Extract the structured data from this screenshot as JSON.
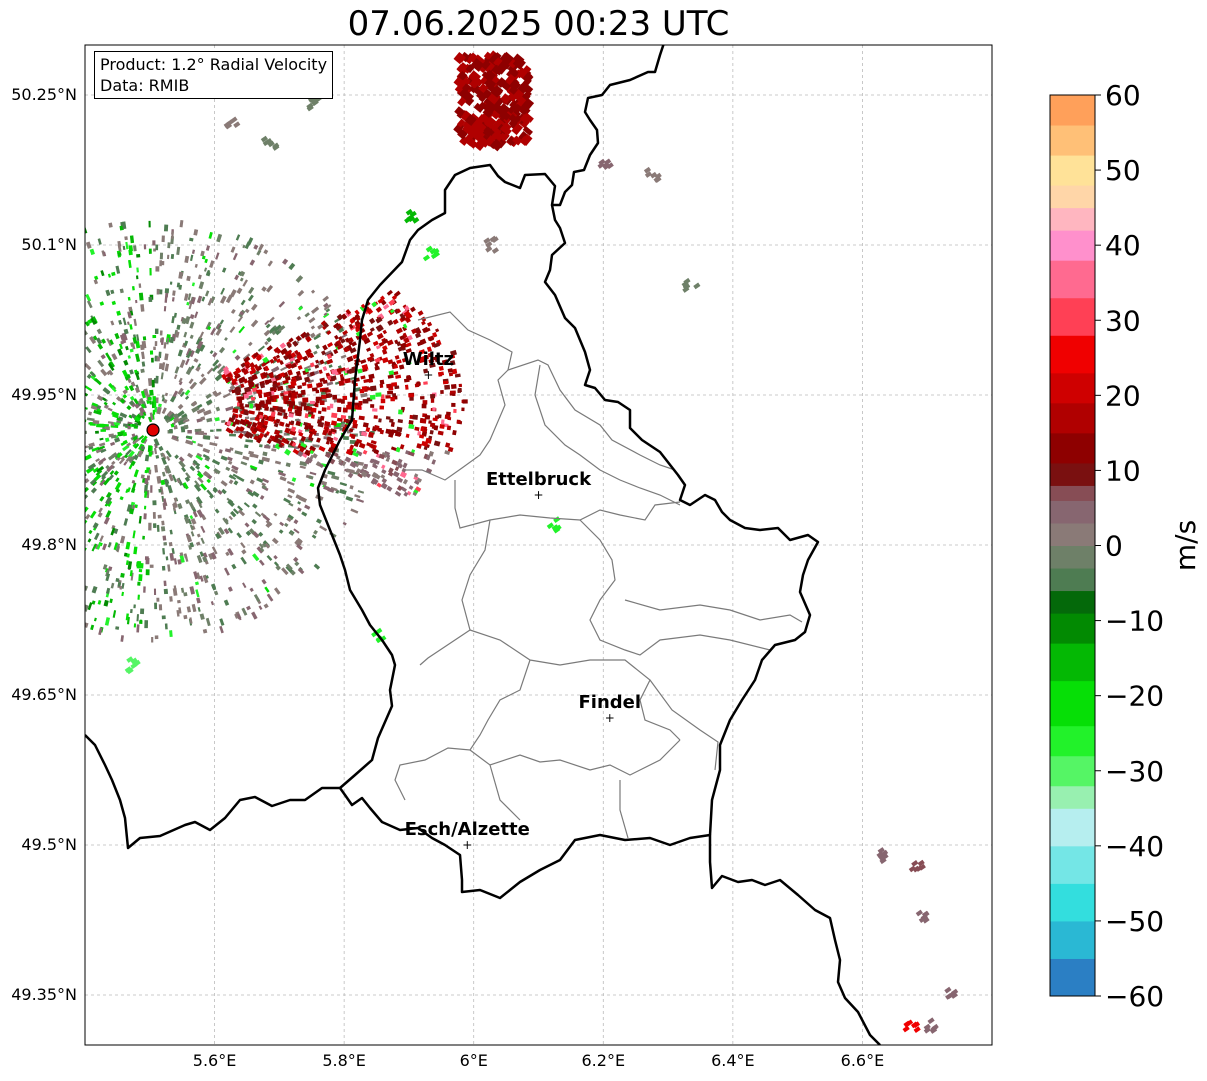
{
  "title": "07.06.2025 00:23 UTC",
  "info": {
    "product": "Product: 1.2° Radial Velocity",
    "data": "Data: RMIB"
  },
  "map": {
    "lon_range": [
      5.4,
      6.8
    ],
    "lat_range": [
      49.3,
      50.3
    ],
    "grid": true,
    "lat_ticks": [
      {
        "value": 50.25,
        "label": "50.25°N"
      },
      {
        "value": 50.1,
        "label": "50.1°N"
      },
      {
        "value": 49.95,
        "label": "49.95°N"
      },
      {
        "value": 49.8,
        "label": "49.8°N"
      },
      {
        "value": 49.65,
        "label": "49.65°N"
      },
      {
        "value": 49.5,
        "label": "49.5°N"
      },
      {
        "value": 49.35,
        "label": "49.35°N"
      }
    ],
    "lon_ticks": [
      {
        "value": 5.6,
        "label": "5.6°E"
      },
      {
        "value": 5.8,
        "label": "5.8°E"
      },
      {
        "value": 6.0,
        "label": "6°E"
      },
      {
        "value": 6.2,
        "label": "6.2°E"
      },
      {
        "value": 6.4,
        "label": "6.4°E"
      },
      {
        "value": 6.6,
        "label": "6.6°E"
      }
    ],
    "places": [
      {
        "name": "Wiltz",
        "lon": 5.93,
        "lat": 49.97
      },
      {
        "name": "Ettelbruck",
        "lon": 6.1,
        "lat": 49.85
      },
      {
        "name": "Findel",
        "lon": 6.21,
        "lat": 49.627
      },
      {
        "name": "Esch/Alzette",
        "lon": 5.99,
        "lat": 49.5
      }
    ],
    "radar_site": {
      "lon": 5.505,
      "lat": 49.915
    }
  },
  "colorbar": {
    "label": "m/s",
    "min": -60,
    "max": 60,
    "ticks": [
      {
        "value": 60,
        "label": "60"
      },
      {
        "value": 50,
        "label": "50"
      },
      {
        "value": 40,
        "label": "40"
      },
      {
        "value": 30,
        "label": "30"
      },
      {
        "value": 20,
        "label": "20"
      },
      {
        "value": 10,
        "label": "10"
      },
      {
        "value": 0,
        "label": "0"
      },
      {
        "value": -10,
        "label": "−10"
      },
      {
        "value": -20,
        "label": "−20"
      },
      {
        "value": -30,
        "label": "−30"
      },
      {
        "value": -40,
        "label": "−40"
      },
      {
        "value": -50,
        "label": "−50"
      },
      {
        "value": -60,
        "label": "−60"
      }
    ],
    "stops": [
      {
        "from": -60,
        "to": -55,
        "color": "#2b7fc4"
      },
      {
        "from": -55,
        "to": -50,
        "color": "#2ab8d4"
      },
      {
        "from": -50,
        "to": -45,
        "color": "#33dede"
      },
      {
        "from": -45,
        "to": -40,
        "color": "#74e6e6"
      },
      {
        "from": -40,
        "to": -35,
        "color": "#b6eeef"
      },
      {
        "from": -35,
        "to": -32,
        "color": "#98f0b0"
      },
      {
        "from": -32,
        "to": -28,
        "color": "#55f565"
      },
      {
        "from": -28,
        "to": -24,
        "color": "#22f22a"
      },
      {
        "from": -24,
        "to": -18,
        "color": "#06df06"
      },
      {
        "from": -18,
        "to": -13,
        "color": "#04b804"
      },
      {
        "from": -13,
        "to": -9,
        "color": "#028a02"
      },
      {
        "from": -9,
        "to": -6,
        "color": "#04690a"
      },
      {
        "from": -6,
        "to": -3,
        "color": "#4e7c52"
      },
      {
        "from": -3,
        "to": 0,
        "color": "#6e8068"
      },
      {
        "from": 0,
        "to": 3,
        "color": "#8a7a77"
      },
      {
        "from": 3,
        "to": 6,
        "color": "#876670"
      },
      {
        "from": 6,
        "to": 8,
        "color": "#874d55"
      },
      {
        "from": 8,
        "to": 11,
        "color": "#7a1010"
      },
      {
        "from": 11,
        "to": 15,
        "color": "#8e0000"
      },
      {
        "from": 15,
        "to": 19,
        "color": "#b00000"
      },
      {
        "from": 19,
        "to": 23,
        "color": "#cf0000"
      },
      {
        "from": 23,
        "to": 28,
        "color": "#f00000"
      },
      {
        "from": 28,
        "to": 33,
        "color": "#ff4055"
      },
      {
        "from": 33,
        "to": 38,
        "color": "#ff6a90"
      },
      {
        "from": 38,
        "to": 42,
        "color": "#ff90cc"
      },
      {
        "from": 42,
        "to": 45,
        "color": "#ffb6c0"
      },
      {
        "from": 45,
        "to": 48,
        "color": "#ffd6a8"
      },
      {
        "from": 48,
        "to": 52,
        "color": "#ffe298"
      },
      {
        "from": 52,
        "to": 56,
        "color": "#ffc077"
      },
      {
        "from": 56,
        "to": 60,
        "color": "#ffa05a"
      }
    ]
  },
  "colors": {
    "border": "#000000",
    "admin": "#7a7a7a",
    "grid": "#bbbbbb",
    "radar_site": "#e00000"
  }
}
